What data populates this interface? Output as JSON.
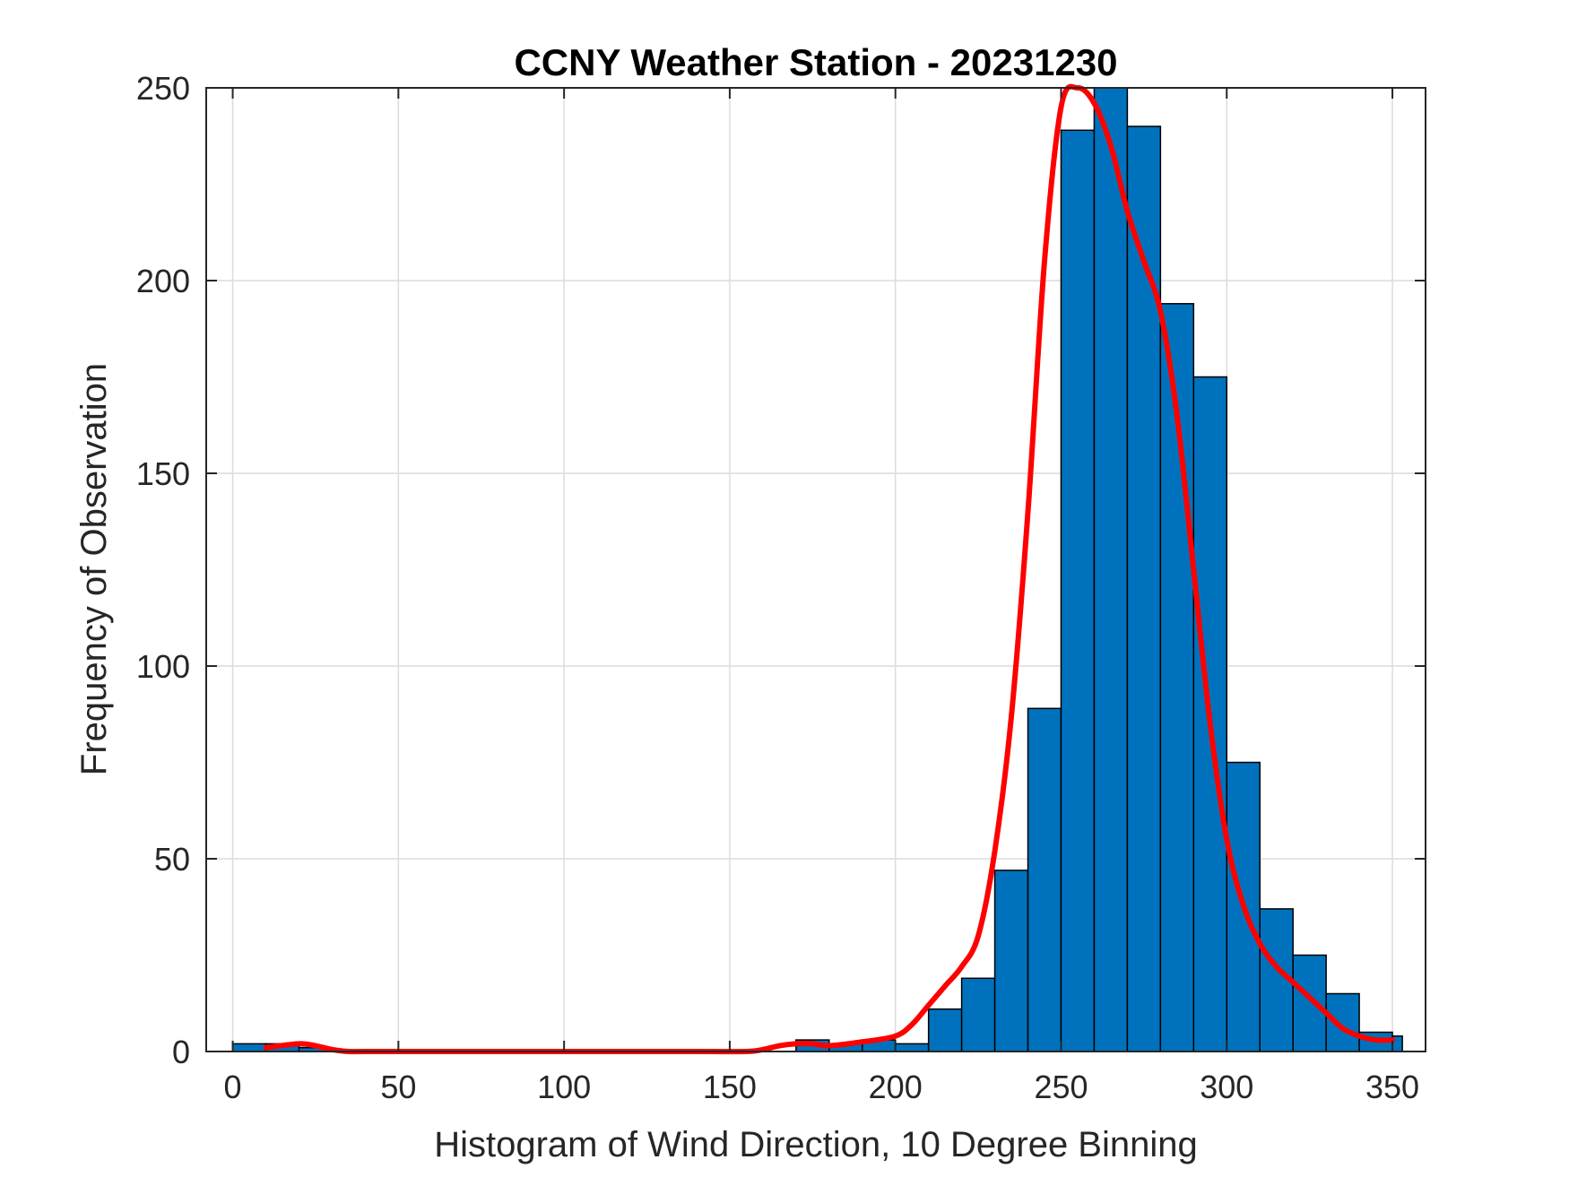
{
  "chart_data": {
    "type": "bar",
    "title": "CCNY Weather Station - 20231230",
    "xlabel": "Histogram of Wind Direction, 10 Degree Binning",
    "ylabel": "Frequency of Observation",
    "xlim": [
      -8,
      360
    ],
    "ylim": [
      0,
      250
    ],
    "xticks": [
      0,
      50,
      100,
      150,
      200,
      250,
      300,
      350
    ],
    "yticks": [
      0,
      50,
      100,
      150,
      200,
      250
    ],
    "grid": true,
    "bin_width": 10,
    "bins": [
      {
        "start": 0,
        "end": 10,
        "count": 2
      },
      {
        "start": 10,
        "end": 20,
        "count": 2
      },
      {
        "start": 20,
        "end": 30,
        "count": 1
      },
      {
        "start": 30,
        "end": 40,
        "count": 0
      },
      {
        "start": 40,
        "end": 50,
        "count": 0
      },
      {
        "start": 50,
        "end": 60,
        "count": 0
      },
      {
        "start": 60,
        "end": 70,
        "count": 0
      },
      {
        "start": 70,
        "end": 80,
        "count": 0
      },
      {
        "start": 80,
        "end": 90,
        "count": 0
      },
      {
        "start": 90,
        "end": 100,
        "count": 0
      },
      {
        "start": 100,
        "end": 110,
        "count": 0
      },
      {
        "start": 110,
        "end": 120,
        "count": 0
      },
      {
        "start": 120,
        "end": 130,
        "count": 0
      },
      {
        "start": 130,
        "end": 140,
        "count": 0
      },
      {
        "start": 140,
        "end": 150,
        "count": 0
      },
      {
        "start": 150,
        "end": 160,
        "count": 0
      },
      {
        "start": 160,
        "end": 170,
        "count": 0
      },
      {
        "start": 170,
        "end": 180,
        "count": 3
      },
      {
        "start": 180,
        "end": 190,
        "count": 2
      },
      {
        "start": 190,
        "end": 200,
        "count": 3
      },
      {
        "start": 200,
        "end": 210,
        "count": 2
      },
      {
        "start": 210,
        "end": 220,
        "count": 11
      },
      {
        "start": 220,
        "end": 230,
        "count": 19
      },
      {
        "start": 230,
        "end": 240,
        "count": 47
      },
      {
        "start": 240,
        "end": 250,
        "count": 89
      },
      {
        "start": 250,
        "end": 260,
        "count": 239
      },
      {
        "start": 260,
        "end": 270,
        "count": 250
      },
      {
        "start": 270,
        "end": 280,
        "count": 240
      },
      {
        "start": 280,
        "end": 290,
        "count": 194
      },
      {
        "start": 290,
        "end": 300,
        "count": 175
      },
      {
        "start": 300,
        "end": 310,
        "count": 75
      },
      {
        "start": 310,
        "end": 320,
        "count": 37
      },
      {
        "start": 320,
        "end": 330,
        "count": 25
      },
      {
        "start": 330,
        "end": 340,
        "count": 15
      },
      {
        "start": 340,
        "end": 350,
        "count": 5
      },
      {
        "start": 350,
        "end": 353,
        "count": 4
      }
    ],
    "series": [
      {
        "type": "line",
        "x": [
          10,
          20,
          25,
          30,
          35,
          40,
          60,
          100,
          140,
          155,
          160,
          165,
          170,
          175,
          180,
          190,
          200,
          205,
          210,
          215,
          220,
          225,
          230,
          235,
          240,
          245,
          250,
          255,
          260,
          265,
          270,
          275,
          280,
          285,
          290,
          295,
          300,
          305,
          310,
          315,
          320,
          325,
          330,
          335,
          340,
          345,
          350
        ],
        "y": [
          1,
          2,
          1.5,
          0.5,
          0,
          0,
          0,
          0,
          0,
          0,
          0.5,
          1.5,
          2,
          2,
          1.5,
          2.5,
          4,
          7,
          12,
          17,
          22,
          30,
          52,
          87,
          140,
          205,
          245,
          250,
          246,
          235,
          218,
          205,
          192,
          165,
          125,
          85,
          55,
          38,
          28,
          22,
          18,
          14,
          10,
          6,
          4,
          3,
          3
        ],
        "color": "#ff0000"
      }
    ],
    "bar_color": "#0072bd",
    "bar_edge_color": "#000000",
    "line_color": "#ff0000"
  }
}
